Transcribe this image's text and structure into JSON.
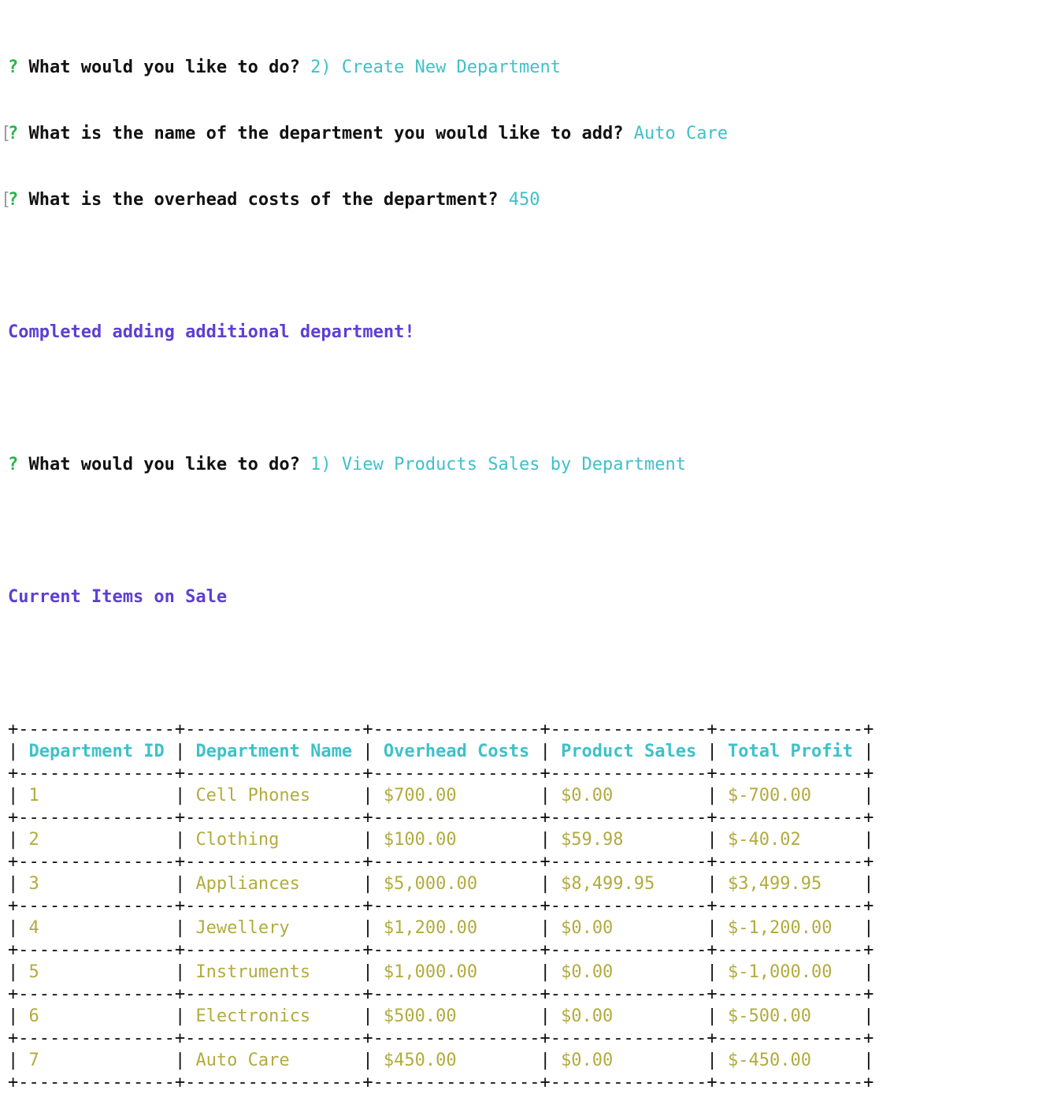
{
  "prompts": [
    {
      "question": "What would you like to do?",
      "answer": "2) Create New Department",
      "bracket": false
    },
    {
      "question": "What is the name of the department you would like to add?",
      "answer": "Auto Care",
      "bracket": true
    },
    {
      "question": "What is the overhead costs of the department?",
      "answer": "450",
      "bracket": true
    }
  ],
  "status_added": "Completed adding additional department!",
  "prompt_view": {
    "question": "What would you like to do?",
    "answer": "1) View Products Sales by Department"
  },
  "status_items": "Current Items on Sale",
  "table": {
    "headers": [
      "Department ID",
      "Department Name",
      "Overhead Costs",
      "Product Sales",
      "Total Profit"
    ],
    "rows": [
      [
        "1",
        "Cell Phones",
        "$700.00",
        "$0.00",
        "$-700.00"
      ],
      [
        "2",
        "Clothing",
        "$100.00",
        "$59.98",
        "$-40.02"
      ],
      [
        "3",
        "Appliances",
        "$5,000.00",
        "$8,499.95",
        "$3,499.95"
      ],
      [
        "4",
        "Jewellery",
        "$1,200.00",
        "$0.00",
        "$-1,200.00"
      ],
      [
        "5",
        "Instruments",
        "$1,000.00",
        "$0.00",
        "$-1,000.00"
      ],
      [
        "6",
        "Electronics",
        "$500.00",
        "$0.00",
        "$-500.00"
      ],
      [
        "7",
        "Auto Care",
        "$450.00",
        "$0.00",
        "$-450.00"
      ]
    ]
  },
  "colors": {
    "question_mark": "#2cb34a",
    "answer": "#3ec1c9",
    "status": "#5d3fd3",
    "table_header": "#3ec1c9",
    "table_cell": "#b2ab3e"
  }
}
